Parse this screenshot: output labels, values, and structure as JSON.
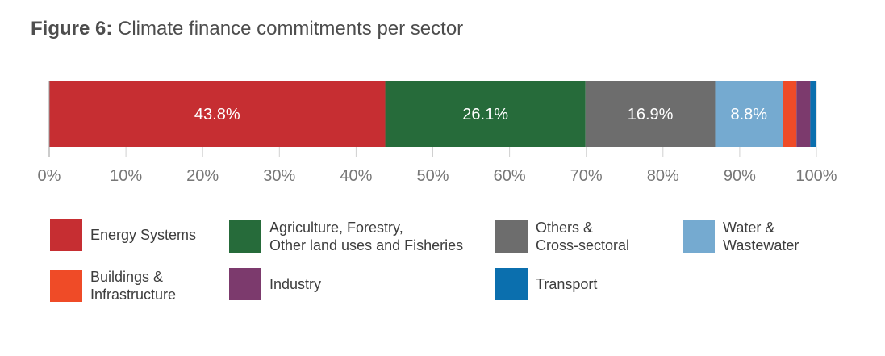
{
  "title": {
    "prefix": "Figure 6:",
    "text": "Climate finance commitments per sector"
  },
  "chart_data": {
    "type": "bar",
    "orientation": "horizontal-stacked-100",
    "title": "Figure 6: Climate finance commitments per sector",
    "xlim": [
      0,
      100
    ],
    "x_ticks": [
      "0%",
      "10%",
      "20%",
      "30%",
      "40%",
      "50%",
      "60%",
      "70%",
      "80%",
      "90%",
      "100%"
    ],
    "grid": true,
    "series": [
      {
        "name": "Energy Systems",
        "value": 43.8,
        "label": "43.8%",
        "color": "#c62e32"
      },
      {
        "name": "Agriculture, Forestry,\nOther land uses and Fisheries",
        "value": 26.1,
        "label": "26.1%",
        "color": "#266b3a"
      },
      {
        "name": "Others &\nCross-sectoral",
        "value": 16.9,
        "label": "16.9%",
        "color": "#6d6d6d"
      },
      {
        "name": "Water &\nWastewater",
        "value": 8.8,
        "label": "8.8%",
        "color": "#75aad0"
      },
      {
        "name": "Buildings &\nInfrastructure",
        "value": 1.8,
        "label": "",
        "color": "#ef4b27"
      },
      {
        "name": "Industry",
        "value": 1.8,
        "label": "",
        "color": "#7c3a6d"
      },
      {
        "name": "Transport",
        "value": 0.8,
        "label": "",
        "color": "#0b6fae"
      }
    ]
  }
}
